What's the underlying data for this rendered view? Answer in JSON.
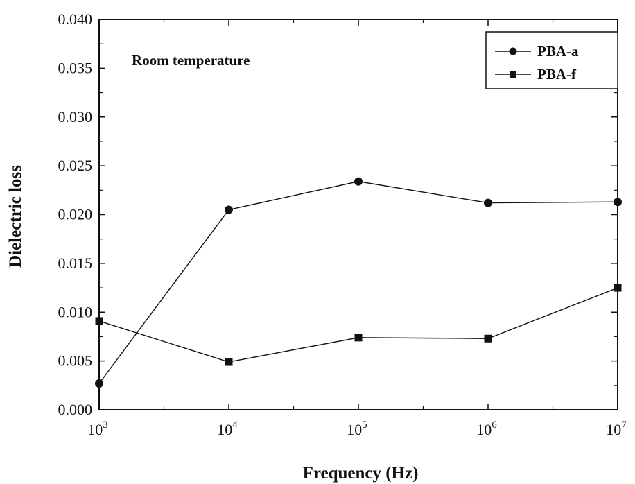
{
  "chart_data": {
    "type": "line",
    "xlabel": "Frequency (Hz)",
    "ylabel": "Dielectric loss",
    "annotation": "Room temperature",
    "x_scale": "log",
    "xlim": [
      1000,
      10000000
    ],
    "ylim": [
      0,
      0.04
    ],
    "x": [
      1000,
      10000,
      100000,
      1000000,
      10000000
    ],
    "x_tick_labels": [
      {
        "base": "10",
        "exp": "3"
      },
      {
        "base": "10",
        "exp": "4"
      },
      {
        "base": "10",
        "exp": "5"
      },
      {
        "base": "10",
        "exp": "6"
      },
      {
        "base": "10",
        "exp": "7"
      }
    ],
    "y_ticks": [
      0,
      0.005,
      0.01,
      0.015,
      0.02,
      0.025,
      0.03,
      0.035,
      0.04
    ],
    "y_tick_labels": [
      "0.000",
      "0.005",
      "0.010",
      "0.015",
      "0.020",
      "0.025",
      "0.030",
      "0.035",
      "0.040"
    ],
    "grid": false,
    "legend_position": "top-right",
    "series": [
      {
        "name": "PBA-a",
        "marker": "circle",
        "values": [
          0.0027,
          0.0205,
          0.0234,
          0.0212,
          0.0213
        ]
      },
      {
        "name": "PBA-f",
        "marker": "square",
        "values": [
          0.0091,
          0.0049,
          0.0074,
          0.0073,
          0.0125
        ]
      }
    ]
  }
}
